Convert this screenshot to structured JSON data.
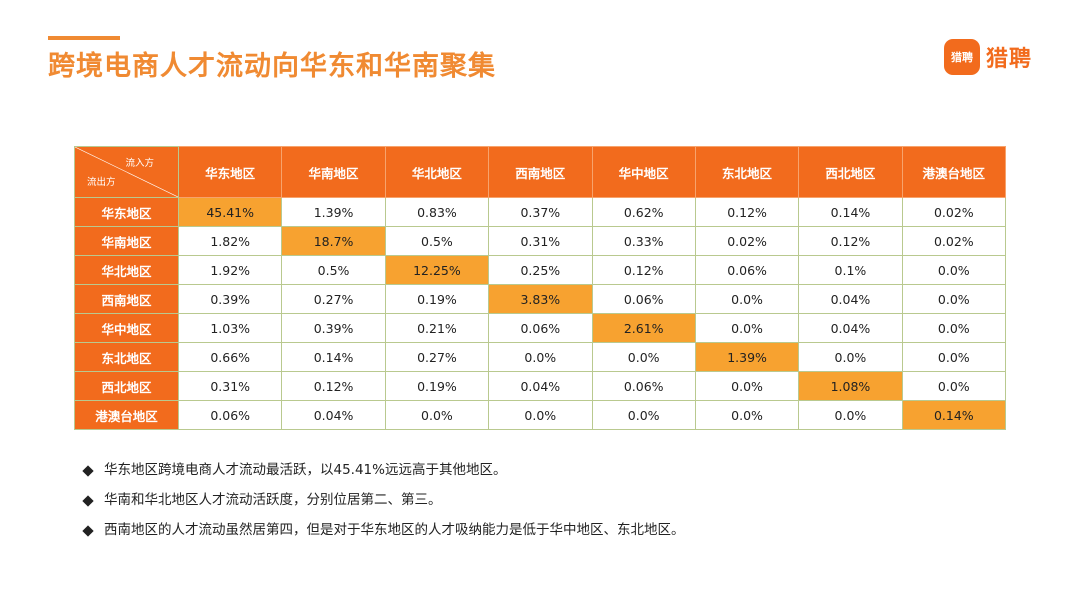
{
  "page": {
    "title": "跨境电商人才流动向华东和华南聚集",
    "logo": {
      "badge_text": "猎聘",
      "brand_text": "猎聘"
    },
    "colors": {
      "accent": "#F08A32",
      "header": "#F26B1D",
      "highlight": "#F7A230",
      "grid": "#B9C98F"
    }
  },
  "chart_data": {
    "type": "table",
    "corner": {
      "inflow_label": "流入方",
      "outflow_label": "流出方"
    },
    "columns": [
      "华东地区",
      "华南地区",
      "华北地区",
      "西南地区",
      "华中地区",
      "东北地区",
      "西北地区",
      "港澳台地区"
    ],
    "rows": [
      {
        "label": "华东地区",
        "values": [
          "45.41%",
          "1.39%",
          "0.83%",
          "0.37%",
          "0.62%",
          "0.12%",
          "0.14%",
          "0.02%"
        ]
      },
      {
        "label": "华南地区",
        "values": [
          "1.82%",
          "18.7%",
          "0.5%",
          "0.31%",
          "0.33%",
          "0.02%",
          "0.12%",
          "0.02%"
        ]
      },
      {
        "label": "华北地区",
        "values": [
          "1.92%",
          "0.5%",
          "12.25%",
          "0.25%",
          "0.12%",
          "0.06%",
          "0.1%",
          "0.0%"
        ]
      },
      {
        "label": "西南地区",
        "values": [
          "0.39%",
          "0.27%",
          "0.19%",
          "3.83%",
          "0.06%",
          "0.0%",
          "0.04%",
          "0.0%"
        ]
      },
      {
        "label": "华中地区",
        "values": [
          "1.03%",
          "0.39%",
          "0.21%",
          "0.06%",
          "2.61%",
          "0.0%",
          "0.04%",
          "0.0%"
        ]
      },
      {
        "label": "东北地区",
        "values": [
          "0.66%",
          "0.14%",
          "0.27%",
          "0.0%",
          "0.0%",
          "1.39%",
          "0.0%",
          "0.0%"
        ]
      },
      {
        "label": "西北地区",
        "values": [
          "0.31%",
          "0.12%",
          "0.19%",
          "0.04%",
          "0.06%",
          "0.0%",
          "1.08%",
          "0.0%"
        ]
      },
      {
        "label": "港澳台地区",
        "values": [
          "0.06%",
          "0.04%",
          "0.0%",
          "0.0%",
          "0.0%",
          "0.0%",
          "0.0%",
          "0.14%"
        ]
      }
    ]
  },
  "bullets": [
    "华东地区跨境电商人才流动最活跃，以45.41%远远高于其他地区。",
    "华南和华北地区人才流动活跃度，分别位居第二、第三。",
    "西南地区的人才流动虽然居第四，但是对于华东地区的人才吸纳能力是低于华中地区、东北地区。"
  ]
}
